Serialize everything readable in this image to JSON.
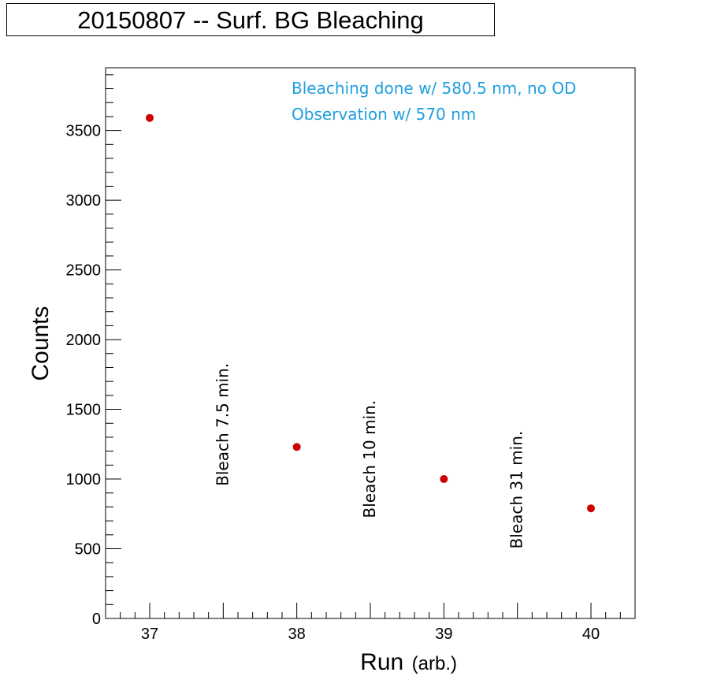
{
  "title": "20150807 -- Surf. BG Bleaching",
  "chart_data": {
    "type": "scatter",
    "x": [
      37,
      38,
      39,
      40
    ],
    "y": [
      3590,
      1230,
      1000,
      790
    ],
    "xlabel_main": "Run",
    "xlabel_unit": "(arb.)",
    "ylabel": "Counts",
    "xlim": [
      36.7,
      40.3
    ],
    "ylim": [
      0,
      3950
    ],
    "xticks": [
      "37",
      "38",
      "39",
      "40"
    ],
    "yticks": [
      "0",
      "500",
      "1000",
      "1500",
      "2000",
      "2500",
      "3000",
      "3500"
    ],
    "point_color": "#cc0000",
    "grid": false,
    "annotations": [
      {
        "text": "Bleach 7.5 min.",
        "x": 37.5,
        "y": 950
      },
      {
        "text": "Bleach 10 min.",
        "x": 38.5,
        "y": 720
      },
      {
        "text": "Bleach 31 min.",
        "x": 39.5,
        "y": 500
      }
    ],
    "notes": [
      "Bleaching done w/ 580.5 nm, no OD",
      "Observation w/ 570 nm"
    ],
    "note_color": "#1e9fe0"
  }
}
